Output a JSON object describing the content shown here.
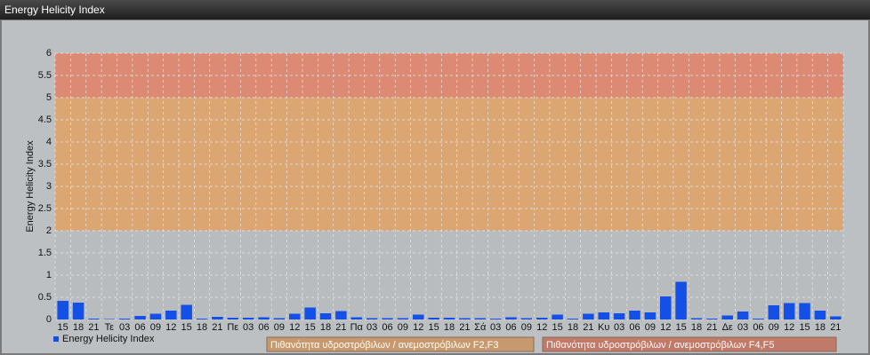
{
  "chart_data": {
    "type": "bar",
    "title": "Energy Helicity Index",
    "ylabel": "Energy Helicity Index",
    "categories": [
      "15",
      "18",
      "21",
      "Τε",
      "03",
      "06",
      "09",
      "12",
      "15",
      "18",
      "21",
      "Πε",
      "03",
      "06",
      "09",
      "12",
      "15",
      "18",
      "21",
      "Πα",
      "03",
      "06",
      "09",
      "12",
      "15",
      "18",
      "21",
      "Σά",
      "03",
      "06",
      "09",
      "12",
      "15",
      "18",
      "21",
      "Κυ",
      "03",
      "06",
      "09",
      "12",
      "15",
      "18",
      "21",
      "Δε",
      "03",
      "06",
      "09",
      "12",
      "15",
      "18",
      "21"
    ],
    "series": [
      {
        "name": "Energy Helicity Index",
        "color": "#1450e6",
        "values": [
          0.42,
          0.38,
          0.02,
          0.01,
          0.02,
          0.08,
          0.13,
          0.2,
          0.33,
          0.02,
          0.06,
          0.04,
          0.04,
          0.05,
          0.03,
          0.13,
          0.27,
          0.14,
          0.19,
          0.05,
          0.03,
          0.03,
          0.03,
          0.11,
          0.04,
          0.04,
          0.03,
          0.03,
          0.02,
          0.05,
          0.03,
          0.04,
          0.11,
          0.02,
          0.13,
          0.16,
          0.14,
          0.2,
          0.16,
          0.52,
          0.85,
          0.03,
          0.02,
          0.09,
          0.18,
          0.02,
          0.32,
          0.37,
          0.37,
          0.2,
          0.07
        ]
      }
    ],
    "bands": [
      {
        "from": 2,
        "to": 5,
        "color": "#dca673",
        "legend_color": "#c69a6e",
        "label": "Πιθανότητα υδροστρόβιλων / ανεμοστρόβιλων F2,F3"
      },
      {
        "from": 5,
        "to": 6,
        "color": "#dc8a74",
        "legend_color": "#c07a6a",
        "label": "Πιθανότητα υδροστρόβιλων / ανεμοστρόβιλων F4,F5"
      }
    ],
    "ylim": [
      0,
      6
    ],
    "yticks": [
      0,
      0.5,
      1,
      1.5,
      2,
      2.5,
      3,
      3.5,
      4,
      4.5,
      5,
      5.5,
      6
    ],
    "grid": true
  }
}
